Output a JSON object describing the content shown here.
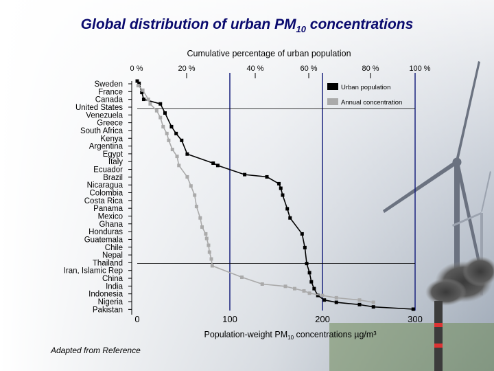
{
  "slide": {
    "title_main": "Global distribution of urban PM",
    "title_sub": "10",
    "title_end": " concentrations",
    "credit": "Adapted from Reference"
  },
  "chart_data": {
    "type": "line",
    "title": "Global distribution of urban PM10 concentrations",
    "top_axis_label": "Cumulative percentage of urban population",
    "top_ticks": [
      "0 %",
      "20 %",
      "40 %",
      "60 %",
      "80 %",
      "100 %"
    ],
    "xlabel_main": "Population-weight PM",
    "xlabel_sub": "10",
    "xlabel_end": " concentrations µg/m³",
    "x_ticks": [
      0,
      100,
      200,
      300
    ],
    "xlim": [
      0,
      300
    ],
    "categories": [
      "Sweden",
      "France",
      "Canada",
      "United States",
      "Venezuela",
      "Greece",
      "South Africa",
      "Kenya",
      "Argentina",
      "Egypt",
      "Italy",
      "Ecuador",
      "Brazil",
      "Nicaragua",
      "Colombia",
      "Costa Rica",
      "Panama",
      "Mexico",
      "Ghana",
      "Honduras",
      "Guatemala",
      "Chile",
      "Nepal",
      "Thailand",
      "Iran, Islamic Rep",
      "China",
      "India",
      "Indonesia",
      "Nigeria",
      "Pakistan"
    ],
    "legend": {
      "placement": "top-right"
    },
    "reference_lines_pct": [
      12,
      80
    ],
    "series": [
      {
        "name": "Urban population",
        "color": "#000000",
        "points": [
          [
            0,
            0
          ],
          [
            2,
            1
          ],
          [
            5,
            5
          ],
          [
            7,
            8
          ],
          [
            25,
            10
          ],
          [
            30,
            14
          ],
          [
            37,
            20
          ],
          [
            42,
            23
          ],
          [
            48,
            26
          ],
          [
            54,
            32
          ],
          [
            82,
            36
          ],
          [
            87,
            37
          ],
          [
            116,
            41
          ],
          [
            140,
            42
          ],
          [
            153,
            45
          ],
          [
            155,
            47
          ],
          [
            157,
            50
          ],
          [
            162,
            56
          ],
          [
            165,
            60
          ],
          [
            178,
            67
          ],
          [
            181,
            73
          ],
          [
            183,
            80
          ],
          [
            186,
            84
          ],
          [
            188,
            88
          ],
          [
            191,
            91
          ],
          [
            195,
            94
          ],
          [
            202,
            96
          ],
          [
            215,
            97
          ],
          [
            240,
            98
          ],
          [
            255,
            99
          ],
          [
            298,
            100
          ]
        ]
      },
      {
        "name": "Annual concentration",
        "color": "#aaaaaa",
        "points": [
          [
            1,
            2
          ],
          [
            6,
            4
          ],
          [
            12,
            8
          ],
          [
            14,
            10
          ],
          [
            21,
            13
          ],
          [
            25,
            16
          ],
          [
            28,
            20
          ],
          [
            32,
            23
          ],
          [
            34,
            26
          ],
          [
            38,
            30
          ],
          [
            43,
            33
          ],
          [
            45,
            37
          ],
          [
            54,
            42
          ],
          [
            58,
            46
          ],
          [
            62,
            50
          ],
          [
            64,
            55
          ],
          [
            68,
            60
          ],
          [
            70,
            64
          ],
          [
            74,
            67
          ],
          [
            75,
            69
          ],
          [
            77,
            72
          ],
          [
            78,
            75
          ],
          [
            80,
            78
          ],
          [
            81,
            81
          ],
          [
            113,
            86
          ],
          [
            135,
            89
          ],
          [
            160,
            90
          ],
          [
            170,
            91
          ],
          [
            180,
            92
          ],
          [
            186,
            93
          ],
          [
            200,
            94
          ],
          [
            215,
            95
          ],
          [
            240,
            96
          ],
          [
            255,
            97
          ]
        ]
      }
    ]
  }
}
